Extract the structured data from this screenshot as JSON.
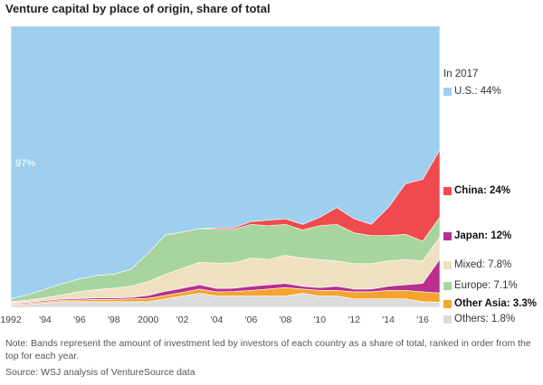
{
  "chart_data": {
    "type": "area",
    "title": "Venture capital by place of origin, share of total",
    "legend_title": "In 2017",
    "x_ticks": [
      "1992",
      "'94",
      "'96",
      "'98",
      "2000",
      "'02",
      "'04",
      "'06",
      "'08",
      "'10",
      "'12",
      "'14",
      "'16"
    ],
    "annotation": "97%",
    "x": [
      1992,
      1993,
      1994,
      1995,
      1996,
      1997,
      1998,
      1999,
      2000,
      2001,
      2002,
      2003,
      2004,
      2005,
      2006,
      2007,
      2008,
      2009,
      2010,
      2011,
      2012,
      2013,
      2014,
      2015,
      2016,
      2017
    ],
    "series": [
      {
        "name": "Others",
        "label": "Others: 1.8%",
        "color": "#dcdcdc",
        "values": [
          1.0,
          1.0,
          1.5,
          2.0,
          2.0,
          2.0,
          2.0,
          2.0,
          2.0,
          3.0,
          4.0,
          5.0,
          4.0,
          4.0,
          4.0,
          4.0,
          4.0,
          5.0,
          4.0,
          4.0,
          3.0,
          3.0,
          3.0,
          3.0,
          2.0,
          1.8
        ]
      },
      {
        "name": "Other Asia",
        "label": "Other Asia: 3.3%",
        "color": "#f5a431",
        "values": [
          0.3,
          0.4,
          0.5,
          0.5,
          0.6,
          0.8,
          0.8,
          1.0,
          1.2,
          1.2,
          1.3,
          1.5,
          1.5,
          1.6,
          2.0,
          2.5,
          3.0,
          1.5,
          2.0,
          2.0,
          2.5,
          2.5,
          3.0,
          3.0,
          3.5,
          3.3
        ]
      },
      {
        "name": "Japan",
        "label": "Japan: 12%",
        "color": "#b82f8e",
        "values": [
          0.3,
          0.3,
          0.4,
          0.4,
          0.5,
          0.5,
          0.5,
          0.5,
          1.0,
          1.5,
          1.5,
          1.5,
          1.2,
          1.2,
          1.5,
          1.5,
          1.5,
          1.0,
          1.0,
          1.5,
          1.0,
          1.0,
          1.5,
          2.0,
          3.0,
          12.0
        ]
      },
      {
        "name": "Mixed",
        "label": "Mixed: 7.8%",
        "color": "#efe0c2",
        "values": [
          0.4,
          0.8,
          1.0,
          1.5,
          2.5,
          3.0,
          3.5,
          4.0,
          5.0,
          6.0,
          7.0,
          8.0,
          9.0,
          9.0,
          10.0,
          9.0,
          10.0,
          10.0,
          10.0,
          9.0,
          9.0,
          9.0,
          9.0,
          9.0,
          8.0,
          7.8
        ]
      },
      {
        "name": "Europe",
        "label": "Europe: 7.1%",
        "color": "#a8d49e",
        "values": [
          1.0,
          2.0,
          3.0,
          4.0,
          4.5,
          5.0,
          5.0,
          6.0,
          10.0,
          14.0,
          13.0,
          12.0,
          12.0,
          12.0,
          12.0,
          12.0,
          11.0,
          10.0,
          12.0,
          13.0,
          11.0,
          10.0,
          9.0,
          9.0,
          7.0,
          7.1
        ]
      },
      {
        "name": "China",
        "label": "China: 24%",
        "color": "#ef4b4f",
        "values": [
          0.0,
          0.0,
          0.0,
          0.0,
          0.0,
          0.0,
          0.0,
          0.0,
          0.0,
          0.0,
          0.0,
          0.0,
          0.5,
          0.5,
          1.0,
          2.0,
          2.0,
          2.0,
          3.0,
          6.0,
          5.0,
          4.0,
          10.0,
          18.0,
          22.0,
          24.0
        ]
      },
      {
        "name": "U.S.",
        "label": "U.S.: 44%",
        "color": "#9fcfee",
        "values": [
          97.0,
          95.5,
          93.6,
          91.6,
          89.9,
          88.7,
          88.2,
          86.5,
          80.8,
          74.3,
          73.2,
          72.0,
          71.8,
          71.7,
          69.5,
          69.0,
          68.5,
          70.5,
          68.0,
          64.5,
          68.5,
          70.5,
          64.5,
          56.0,
          54.5,
          44.0
        ]
      }
    ]
  },
  "note": "Note: Bands represent the amount of investment led by investors of each country as a share of total, ranked in order from the top for each year.",
  "source": "Source: WSJ analysis of VentureSource data"
}
